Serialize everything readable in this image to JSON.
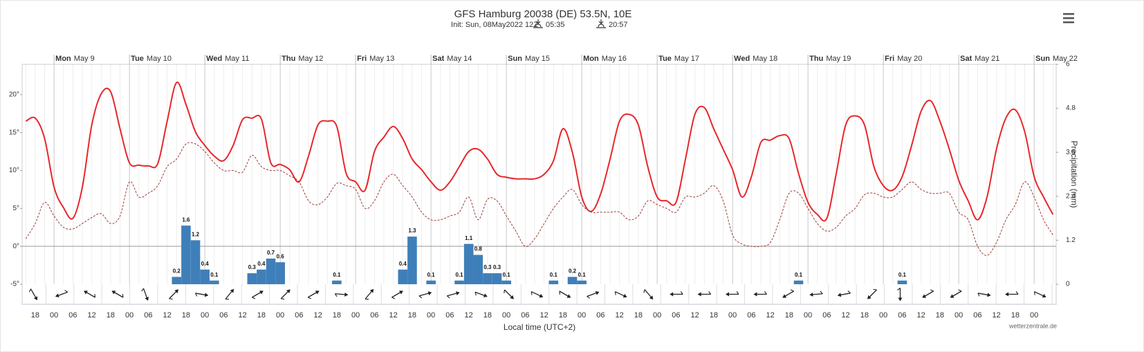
{
  "chart_data": {
    "type": "meteogram",
    "title": "GFS Hamburg 20038 (DE) 53.5N, 10E",
    "subtitle": "Init: Sun, 08May2022 12Z",
    "sunrise": "05:35",
    "sunset": "20:57",
    "x_label": "Local time (UTC+2)",
    "y2_label": "Precipitation (mm)",
    "credit": "wetterzentrale.de",
    "days": [
      {
        "weekday": "Mon",
        "date": "May 9"
      },
      {
        "weekday": "Tue",
        "date": "May 10"
      },
      {
        "weekday": "Wed",
        "date": "May 11"
      },
      {
        "weekday": "Thu",
        "date": "May 12"
      },
      {
        "weekday": "Fri",
        "date": "May 13"
      },
      {
        "weekday": "Sat",
        "date": "May 14"
      },
      {
        "weekday": "Sun",
        "date": "May 15"
      },
      {
        "weekday": "Mon",
        "date": "May 16"
      },
      {
        "weekday": "Tue",
        "date": "May 17"
      },
      {
        "weekday": "Wed",
        "date": "May 18"
      },
      {
        "weekday": "Thu",
        "date": "May 19"
      },
      {
        "weekday": "Fri",
        "date": "May 20"
      },
      {
        "weekday": "Sat",
        "date": "May 21"
      },
      {
        "weekday": "Sun",
        "date": "May 22"
      }
    ],
    "categories": [
      null,
      "18",
      null,
      "00",
      null,
      "06",
      null,
      "12",
      null,
      "18",
      null,
      "00",
      null,
      "06",
      null,
      "12",
      null,
      "18",
      null,
      "00",
      null,
      "06",
      null,
      "12",
      null,
      "18",
      null,
      "00",
      null,
      "06",
      null,
      "12",
      null,
      "18",
      null,
      "00",
      null,
      "06",
      null,
      "12",
      null,
      "18",
      null,
      "00",
      null,
      "06",
      null,
      "12",
      null,
      "18",
      null,
      "00",
      null,
      "06",
      null,
      "12",
      null,
      "18",
      null,
      "00",
      null,
      "06",
      null,
      "12",
      null,
      "18",
      null,
      "00",
      null,
      "06",
      null,
      "12",
      null,
      "18",
      null,
      "00",
      null,
      "06",
      null,
      "12",
      null,
      "18",
      null,
      "00",
      null,
      "06",
      null,
      "12",
      null,
      "18",
      null,
      "00",
      null,
      "06",
      null,
      "12",
      null,
      "18",
      null,
      "00",
      null,
      "06",
      null,
      "12",
      null,
      "18",
      null,
      "00",
      null,
      null
    ],
    "ylim": [
      -5,
      24
    ],
    "yticks": [
      {
        "value": -5,
        "label": "-5°"
      },
      {
        "value": 0,
        "label": "0°"
      },
      {
        "value": 5,
        "label": "5°"
      },
      {
        "value": 10,
        "label": "10°"
      },
      {
        "value": 15,
        "label": "15°"
      },
      {
        "value": 20,
        "label": "20°"
      }
    ],
    "y2lim": [
      0,
      6
    ],
    "y2ticks": [
      0,
      1.2,
      2.4,
      3.6,
      4.8,
      6
    ],
    "series": [
      {
        "type": "line",
        "color": "#e8262a",
        "values": [
          16.5,
          16.9,
          14.2,
          7.8,
          5.1,
          3.7,
          7.8,
          16,
          20.1,
          20.4,
          15.5,
          11,
          10.7,
          10.6,
          10.9,
          16.5,
          21.6,
          18.7,
          15.1,
          13.3,
          11.9,
          11.3,
          13.3,
          16.7,
          16.9,
          16.8,
          11,
          10.8,
          10.1,
          8.5,
          11.9,
          16,
          16.5,
          15.8,
          9.6,
          8.5,
          7.4,
          12.5,
          14.4,
          15.8,
          14.2,
          11.5,
          10.1,
          8.5,
          7.4,
          8.5,
          10.5,
          12.5,
          12.8,
          11.5,
          9.5,
          9.1,
          8.9,
          8.9,
          8.9,
          9.5,
          11.3,
          15.5,
          12.4,
          6.5,
          4.6,
          6.9,
          11.5,
          16.5,
          17.4,
          16,
          10.5,
          6.5,
          6,
          5.8,
          11.5,
          17.4,
          18.3,
          15.5,
          12.8,
          10.1,
          6.5,
          9.2,
          13.7,
          14,
          14.6,
          14.2,
          9.6,
          5.8,
          4.2,
          3.7,
          9.6,
          16,
          17.2,
          16,
          10.5,
          8,
          7.4,
          9.2,
          13.3,
          17.8,
          19.2,
          16.5,
          12.8,
          8.7,
          6,
          3.5,
          6.5,
          12.8,
          16.9,
          18,
          15.1,
          9.2,
          6.5,
          4.2
        ]
      },
      {
        "type": "line",
        "dashed": true,
        "color": "#9b3b34",
        "values": [
          1,
          3,
          5.8,
          4,
          2.5,
          2.3,
          3,
          3.8,
          4.3,
          3,
          4,
          8.5,
          6.5,
          7,
          8,
          10.5,
          11.5,
          13.5,
          13.5,
          12.5,
          11,
          10,
          10,
          9.8,
          12,
          10.5,
          10,
          10,
          9.3,
          8.5,
          6,
          5.5,
          6.5,
          8.3,
          8,
          7.5,
          5,
          6,
          8.5,
          9.5,
          8,
          6.5,
          4.5,
          3.5,
          3.5,
          4,
          4.5,
          6.5,
          3.5,
          6.2,
          6,
          4,
          2,
          0,
          1,
          3,
          5,
          6.5,
          7.5,
          5.5,
          4.5,
          4.5,
          4.5,
          4.5,
          3.5,
          4,
          6,
          5.5,
          5,
          4.5,
          6.5,
          6.5,
          7,
          8,
          6,
          1.5,
          0.3,
          0,
          0,
          0.5,
          3.5,
          7,
          7,
          5,
          3,
          2,
          2.5,
          4,
          5,
          6.8,
          7,
          6.5,
          6.5,
          7.5,
          8.5,
          7.5,
          7,
          7,
          7,
          4.5,
          3.5,
          0,
          -1.2,
          0.5,
          3.5,
          5.5,
          8.5,
          6.5,
          3.5,
          1.5
        ]
      },
      {
        "type": "bar",
        "axis": "y2",
        "color": "#3f7fb9",
        "values": [
          0,
          0,
          0,
          0,
          0,
          0,
          0,
          0,
          0,
          0,
          0,
          0,
          0,
          0,
          0,
          0,
          0.2,
          1.6,
          1.2,
          0.4,
          0.1,
          0,
          0,
          0,
          0.3,
          0.4,
          0.7,
          0.6,
          0,
          0,
          0,
          0,
          0,
          0.1,
          0,
          0,
          0,
          0,
          0,
          0,
          0.4,
          1.3,
          0,
          0.1,
          0,
          0,
          0.1,
          1.1,
          0.8,
          0.3,
          0.3,
          0.1,
          0,
          0,
          0,
          0,
          0.1,
          0,
          0.2,
          0.1,
          0,
          0,
          0,
          0,
          0,
          0,
          0,
          0,
          0,
          0,
          0,
          0,
          0,
          0,
          0,
          0,
          0,
          0,
          0,
          0,
          0,
          0,
          0.1,
          0,
          0,
          0,
          0,
          0,
          0,
          0,
          0,
          0,
          0,
          0.1,
          0,
          0,
          0,
          0,
          0,
          0,
          0,
          0,
          0,
          0,
          0,
          0,
          0,
          0,
          0,
          0
        ]
      }
    ],
    "wind_direction": [
      150,
      250,
      300,
      300,
      160,
      45,
      100,
      40,
      60,
      45,
      60,
      95,
      40,
      60,
      75,
      75,
      110,
      135,
      115,
      120,
      70,
      115,
      140,
      270,
      270,
      270,
      270,
      240,
      265,
      260,
      225,
      180,
      240,
      240,
      100,
      270,
      115
    ],
    "grid": true
  }
}
